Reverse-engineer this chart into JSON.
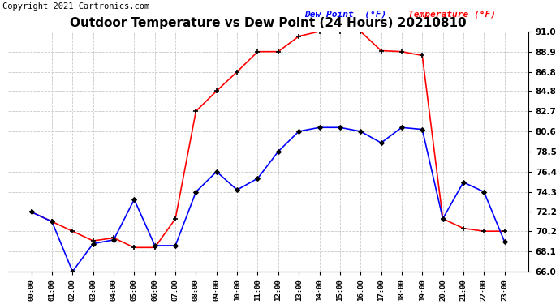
{
  "title": "Outdoor Temperature vs Dew Point (24 Hours) 20210810",
  "copyright": "Copyright 2021 Cartronics.com",
  "x_labels": [
    "00:00",
    "01:00",
    "02:00",
    "03:00",
    "04:00",
    "05:00",
    "06:00",
    "07:00",
    "08:00",
    "09:00",
    "10:00",
    "11:00",
    "12:00",
    "13:00",
    "14:00",
    "15:00",
    "16:00",
    "17:00",
    "18:00",
    "19:00",
    "20:00",
    "21:00",
    "22:00",
    "23:00"
  ],
  "temperature": [
    72.2,
    71.2,
    66.0,
    68.9,
    69.3,
    73.5,
    68.7,
    68.7,
    74.3,
    76.4,
    74.5,
    75.7,
    78.5,
    80.6,
    81.0,
    81.0,
    80.6,
    79.4,
    81.0,
    80.8,
    71.5,
    75.3,
    74.3,
    69.1
  ],
  "dew_point": [
    72.2,
    71.2,
    70.2,
    69.2,
    69.5,
    68.5,
    68.5,
    71.5,
    82.7,
    84.8,
    86.8,
    88.9,
    88.9,
    90.5,
    91.0,
    91.0,
    91.0,
    89.0,
    88.9,
    88.5,
    71.5,
    70.5,
    70.2,
    70.2
  ],
  "temp_color": "blue",
  "dew_color": "red",
  "ylim": [
    66.0,
    91.0
  ],
  "yticks": [
    66.0,
    68.1,
    70.2,
    72.2,
    74.3,
    76.4,
    78.5,
    80.6,
    82.7,
    84.8,
    86.8,
    88.9,
    91.0
  ],
  "legend_dew": "Dew Point  (°F)",
  "legend_temp": "Temperature (°F)",
  "bg_color": "#ffffff",
  "grid_color": "#bbbbbb",
  "title_fontsize": 11,
  "copyright_fontsize": 7.5
}
